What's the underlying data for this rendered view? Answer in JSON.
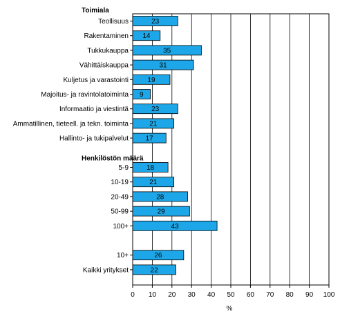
{
  "chart_data": {
    "type": "bar",
    "orientation": "horizontal",
    "title": "",
    "xlabel": "%",
    "ylabel": "",
    "xlim": [
      0,
      100
    ],
    "xticks": [
      0,
      10,
      20,
      30,
      40,
      50,
      60,
      70,
      80,
      90,
      100
    ],
    "grid": "vertical",
    "legend": "none",
    "bar_color": "#1ea7e8",
    "bar_edge_color": "#000000",
    "groups": [
      {
        "label": "Toimiala",
        "categories": [
          "Teollisuus",
          "Rakentaminen",
          "Tukkukauppa",
          "Vähittäiskauppa",
          "Kuljetus ja varastointi",
          "Majoitus- ja ravintolatoiminta",
          "Informaatio ja viestintä",
          "Ammatillinen, tieteell. ja tekn. toiminta",
          "Hallinto- ja tukipalvelut"
        ],
        "values": [
          23,
          14,
          35,
          31,
          19,
          9,
          23,
          21,
          17
        ]
      },
      {
        "label": "Henkilöstön määrä",
        "categories": [
          "5-9",
          "10-19",
          "20-49",
          "50-99",
          "100+"
        ],
        "values": [
          18,
          21,
          28,
          29,
          43
        ]
      },
      {
        "label": "",
        "categories": [
          "10+",
          "Kaikki yritykset"
        ],
        "values": [
          26,
          22
        ]
      }
    ]
  }
}
